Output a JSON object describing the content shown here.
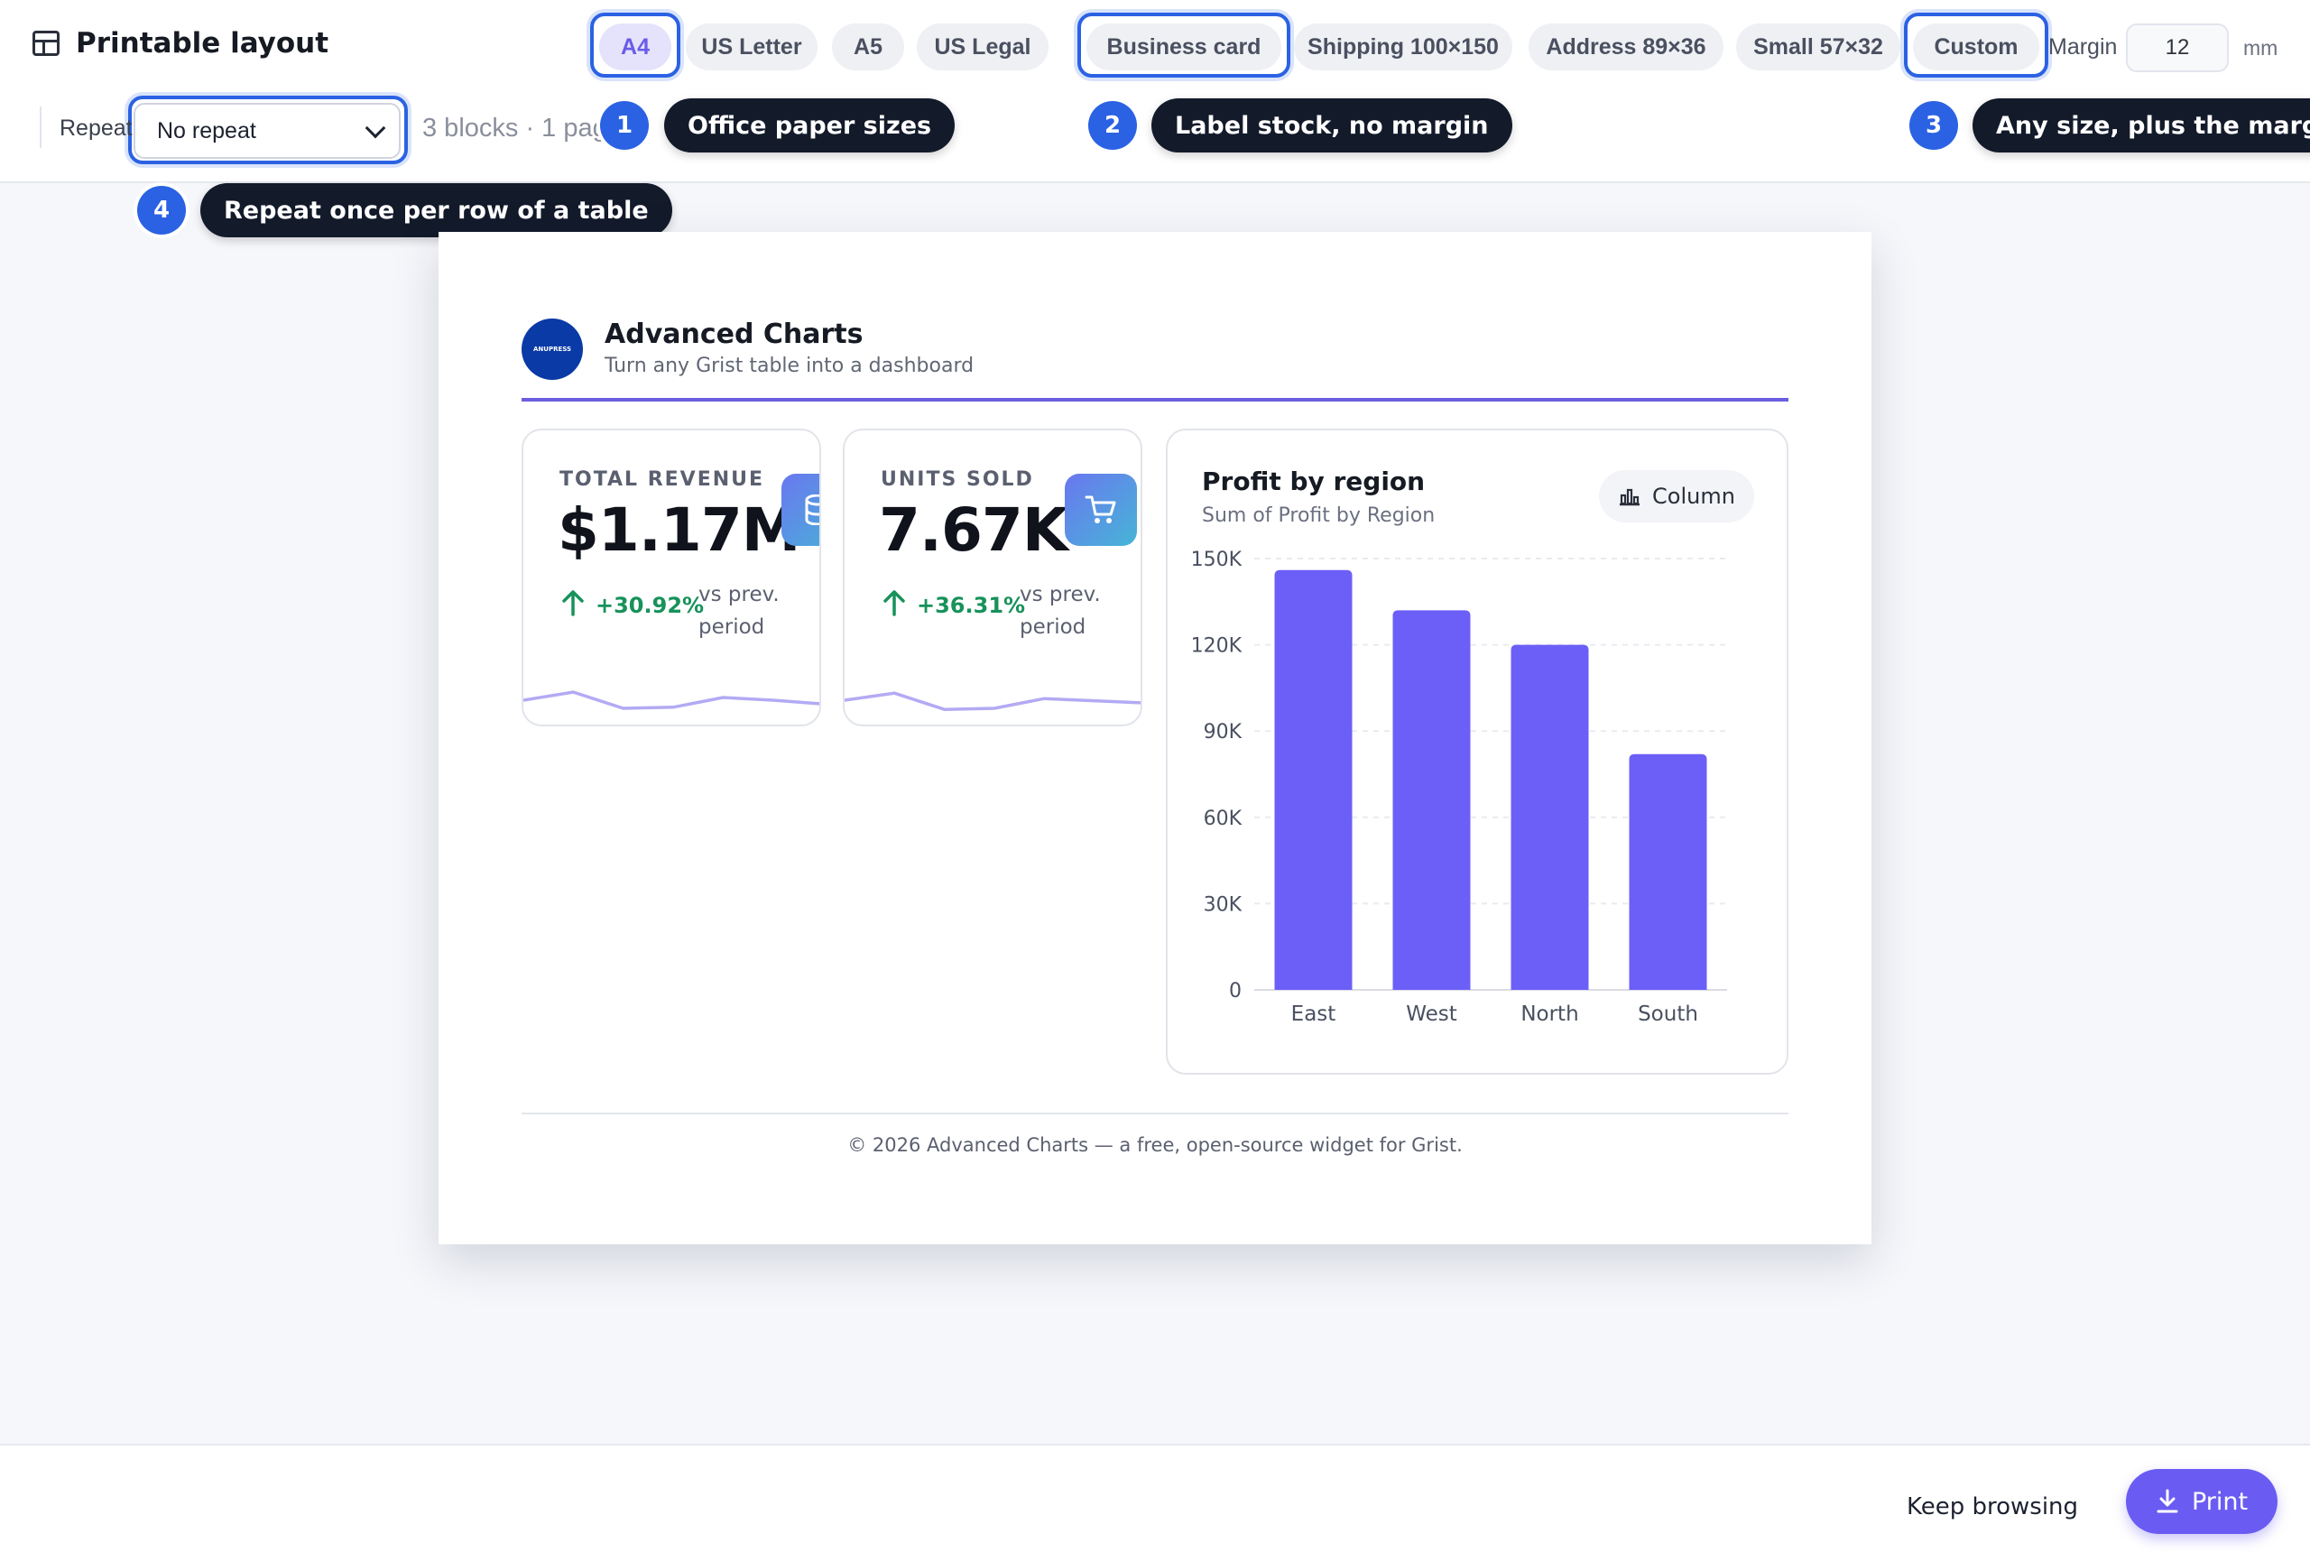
{
  "toolbar": {
    "title": "Printable layout",
    "page_sizes": [
      {
        "label": "A4",
        "active": true
      },
      {
        "label": "US Letter",
        "active": false
      },
      {
        "label": "A5",
        "active": false
      },
      {
        "label": "US Legal",
        "active": false
      },
      {
        "label": "Business card",
        "active": false
      },
      {
        "label": "Shipping 100×150",
        "active": false
      },
      {
        "label": "Address 89×36",
        "active": false
      },
      {
        "label": "Small 57×32",
        "active": false
      },
      {
        "label": "Custom",
        "active": false
      }
    ],
    "margin_label": "Margin",
    "margin_value": "12",
    "margin_unit": "mm",
    "repeat_label": "Repeat",
    "repeat_value": "No repeat",
    "status": "3 blocks · 1 page f"
  },
  "callouts": [
    {
      "number": "1",
      "text": "Office paper sizes"
    },
    {
      "number": "2",
      "text": "Label stock, no margin"
    },
    {
      "number": "3",
      "text": "Any size, plus the margin"
    },
    {
      "number": "4",
      "text": "Repeat once per row of a table"
    }
  ],
  "document": {
    "logo_text": "ANUPRESS",
    "title": "Advanced Charts",
    "subtitle": "Turn any Grist table into a dashboard",
    "kpis": [
      {
        "label": "TOTAL REVENUE",
        "value": "$1.17M",
        "delta": "+30.92%",
        "vs": "vs prev. period",
        "icon": "database-icon",
        "spark": [
          0.55,
          0.4,
          0.7,
          0.68,
          0.5,
          0.55,
          0.62
        ]
      },
      {
        "label": "UNITS SOLD",
        "value": "7.67K",
        "delta": "+36.31%",
        "vs": "vs prev. period",
        "icon": "cart-icon",
        "spark": [
          0.55,
          0.42,
          0.72,
          0.7,
          0.52,
          0.56,
          0.6
        ]
      }
    ],
    "chart_card": {
      "title": "Profit by region",
      "subtitle": "Sum of Profit by Region",
      "type_button": "Column"
    },
    "footer": "© 2026 Advanced Charts — a free, open-source widget for Grist."
  },
  "chart_data": {
    "type": "bar",
    "categories": [
      "East",
      "West",
      "North",
      "South"
    ],
    "values": [
      146000,
      132000,
      120000,
      82000
    ],
    "yticks": [
      "0",
      "30K",
      "60K",
      "90K",
      "120K",
      "150K"
    ],
    "ylim": [
      0,
      150000
    ],
    "bar_color": "#6c5ff7",
    "grid": true
  },
  "bottom_bar": {
    "keep_label": "Keep browsing",
    "print_label": "Print"
  },
  "colors": {
    "accent": "#6a5cf2",
    "highlight": "#2b62e3",
    "positive": "#17925a"
  }
}
